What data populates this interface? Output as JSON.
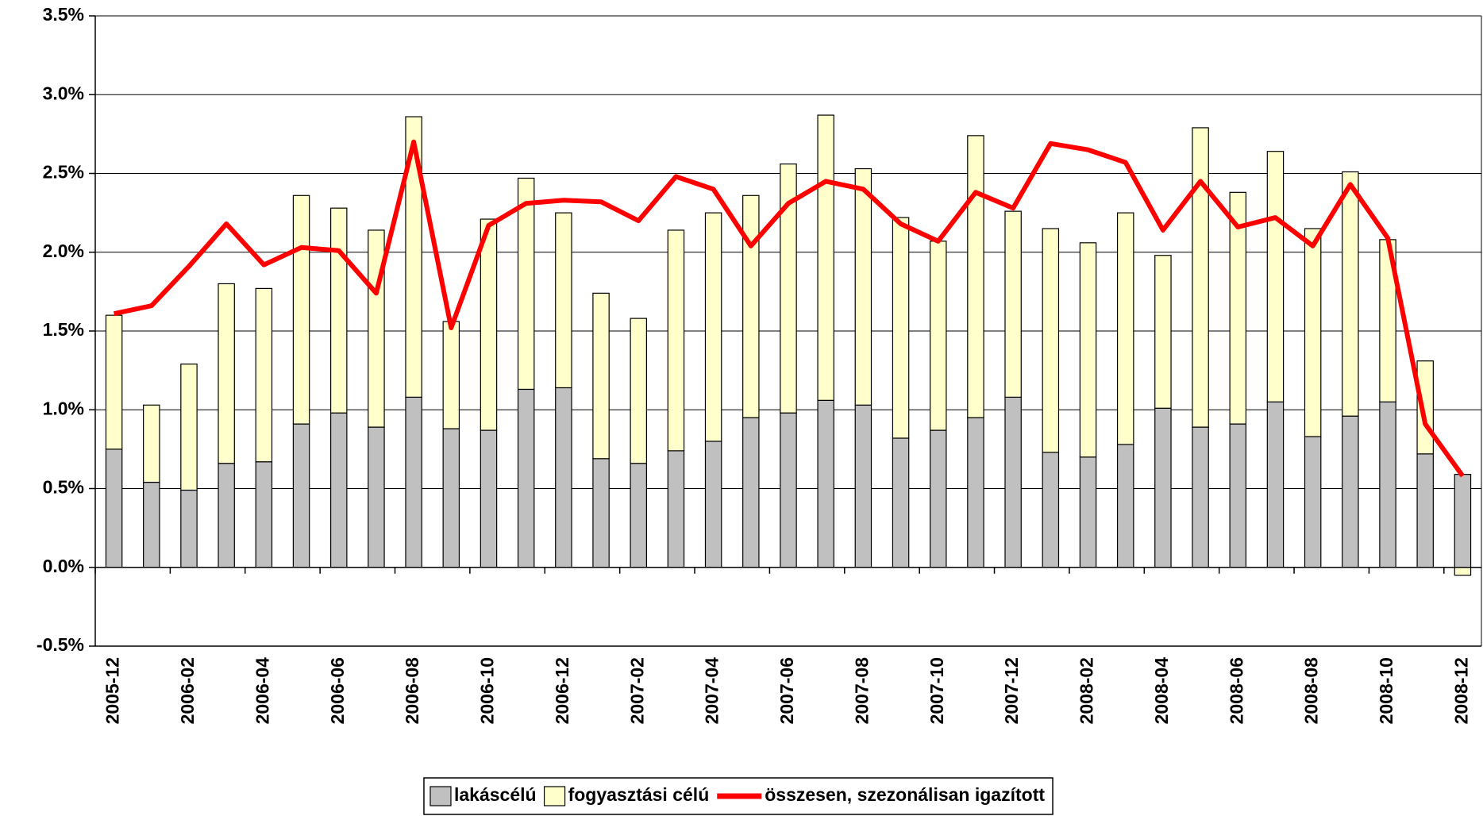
{
  "chart_data": {
    "type": "bar",
    "categories": [
      "2005-12",
      null,
      "2006-02",
      null,
      "2006-04",
      null,
      "2006-06",
      null,
      "2006-08",
      null,
      "2006-10",
      null,
      "2006-12",
      null,
      "2007-02",
      null,
      "2007-04",
      null,
      "2007-06",
      null,
      "2007-08",
      null,
      "2007-10",
      null,
      "2007-12",
      null,
      "2008-02",
      null,
      "2008-04",
      null,
      "2008-06",
      null,
      "2008-08",
      null,
      "2008-10",
      null,
      "2008-12"
    ],
    "series": [
      {
        "name": "lakáscélú",
        "type": "bar",
        "color": "#c0c0c0",
        "values": [
          0.75,
          0.54,
          0.49,
          0.66,
          0.67,
          0.91,
          0.98,
          0.89,
          1.08,
          0.88,
          0.87,
          1.13,
          1.14,
          0.69,
          0.66,
          0.74,
          0.8,
          0.95,
          0.98,
          1.06,
          1.03,
          0.82,
          0.87,
          0.95,
          1.08,
          0.73,
          0.7,
          0.78,
          1.01,
          0.89,
          0.91,
          1.05,
          0.83,
          0.96,
          1.05,
          0.72,
          0.59
        ]
      },
      {
        "name": "fogyasztási célú",
        "type": "bar",
        "color": "#ffffcc",
        "values": [
          0.85,
          0.49,
          0.8,
          1.14,
          1.1,
          1.45,
          1.3,
          1.25,
          1.78,
          0.68,
          1.34,
          1.34,
          1.11,
          1.05,
          0.92,
          1.4,
          1.45,
          1.41,
          1.58,
          1.81,
          1.5,
          1.4,
          1.2,
          1.79,
          1.18,
          1.42,
          1.36,
          1.47,
          0.97,
          1.9,
          1.47,
          1.59,
          1.32,
          1.55,
          1.03,
          0.59,
          -0.05
        ]
      },
      {
        "name": "összesen, szezonálisan igazított",
        "type": "line",
        "color": "#ff0000",
        "values": [
          1.61,
          1.66,
          1.91,
          2.18,
          1.92,
          2.03,
          2.01,
          1.74,
          2.7,
          1.52,
          2.17,
          2.31,
          2.33,
          2.32,
          2.2,
          2.48,
          2.4,
          2.04,
          2.31,
          2.45,
          2.4,
          2.18,
          2.07,
          2.38,
          2.28,
          2.69,
          2.65,
          2.57,
          2.14,
          2.45,
          2.16,
          2.22,
          2.04,
          2.43,
          2.09,
          0.91,
          0.58
        ]
      }
    ],
    "stacked": true,
    "ylim": [
      -0.5,
      3.5
    ],
    "yticks": [
      {
        "value": -0.5,
        "label": "-0.5%"
      },
      {
        "value": 0,
        "label": "0.0%"
      },
      {
        "value": 0.5,
        "label": "0.5%"
      },
      {
        "value": 1,
        "label": "1.0%"
      },
      {
        "value": 1.5,
        "label": "1.5%"
      },
      {
        "value": 2,
        "label": "2.0%"
      },
      {
        "value": 2.5,
        "label": "2.5%"
      },
      {
        "value": 3,
        "label": "3.0%"
      },
      {
        "value": 3.5,
        "label": "3.5%"
      }
    ],
    "grid": true,
    "legend": "bottom"
  }
}
